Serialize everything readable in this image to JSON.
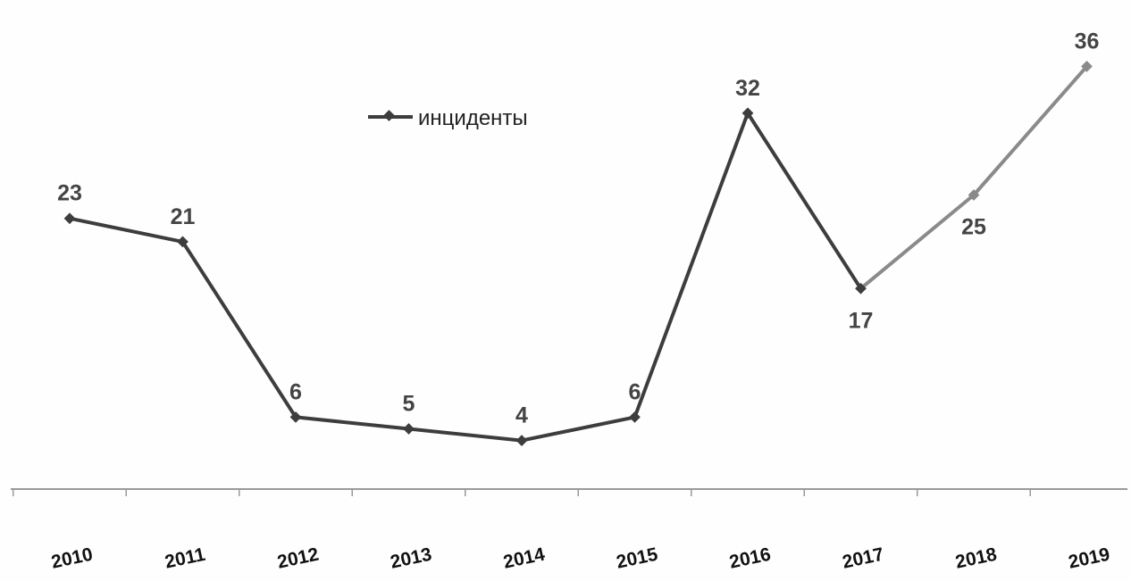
{
  "chart_data": {
    "type": "line",
    "title": "",
    "xlabel": "",
    "ylabel": "",
    "categories": [
      "2010",
      "2011",
      "2012",
      "2013",
      "2014",
      "2015",
      "2016",
      "2017",
      "2018",
      "2019"
    ],
    "series": [
      {
        "name": "инциденты",
        "values": [
          23,
          21,
          6,
          5,
          4,
          6,
          32,
          17,
          25,
          36
        ],
        "color": "#3d3d3d"
      }
    ],
    "data_labels": [
      "23",
      "21",
      "6",
      "5",
      "4",
      "6",
      "32",
      "17",
      "25",
      "36"
    ],
    "ylim": [
      0,
      40
    ],
    "grid": false,
    "legend_position": "top-center",
    "y_axis_visible": false
  }
}
